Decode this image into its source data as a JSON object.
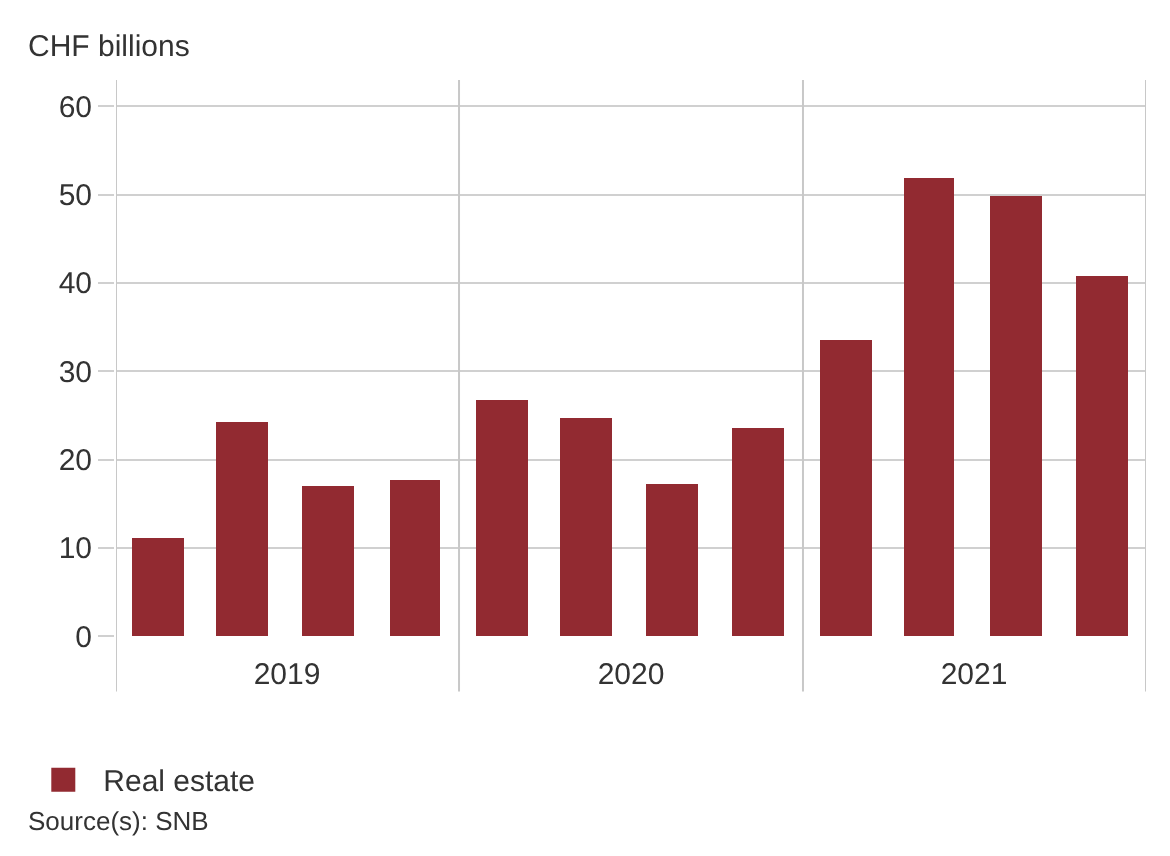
{
  "chart_data": {
    "type": "bar",
    "ylabel": "CHF billions",
    "x": [
      "2019-02-15",
      "2019-05-15",
      "2019-08-15",
      "2019-11-15",
      "2020-02-15",
      "2020-05-15",
      "2020-08-15",
      "2020-11-15",
      "2021-02-15",
      "2021-05-15",
      "2021-08-15",
      "2021-11-15"
    ],
    "series": [
      {
        "name": "Real estate",
        "color": "#922a31",
        "values": [
          11.0,
          24.3,
          17.0,
          17.6,
          26.8,
          24.6,
          17.3,
          23.6,
          33.5,
          51.8,
          49.9,
          40.8
        ]
      }
    ],
    "xlim": [
      "2019-01-01",
      "2022-01-01"
    ],
    "xticks": [
      {
        "value": "2019-01-01",
        "label": null
      },
      {
        "value": "2019-07-02",
        "label": "2019"
      },
      {
        "value": "2020-01-01",
        "label": null
      },
      {
        "value": "2020-07-02",
        "label": "2020"
      },
      {
        "value": "2021-01-01",
        "label": null
      },
      {
        "value": "2021-07-02",
        "label": "2021"
      },
      {
        "value": "2022-01-01",
        "label": null
      }
    ],
    "ylim": [
      0,
      63
    ],
    "yticks": [
      0,
      10,
      20,
      30,
      40,
      50,
      60
    ],
    "grid": true,
    "legend": "bottom left",
    "annotations": [
      "Source(s): SNB"
    ]
  }
}
